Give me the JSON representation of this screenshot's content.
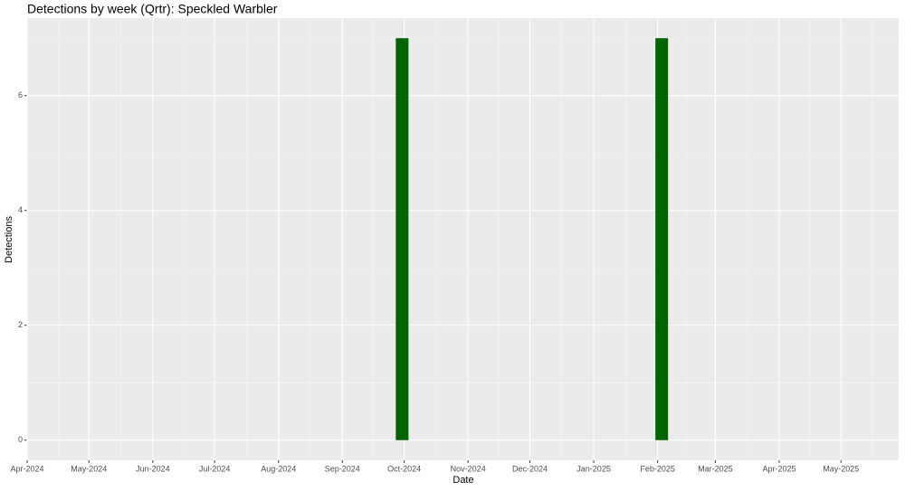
{
  "chart_data": {
    "type": "bar",
    "title": "Detections by week (Qrtr): Speckled Warbler",
    "x_label": "Date",
    "y_label": "Detections",
    "x": [
      182,
      308
    ],
    "values": [
      7,
      7
    ],
    "color": "#006400",
    "xlim": [
      0,
      423
    ],
    "ylim": [
      -0.35,
      7.35
    ],
    "xticks": [
      {
        "value": 0,
        "label": "Apr-2024"
      },
      {
        "value": 30,
        "label": "May-2024"
      },
      {
        "value": 61,
        "label": "Jun-2024"
      },
      {
        "value": 91,
        "label": "Jul-2024"
      },
      {
        "value": 122,
        "label": "Aug-2024"
      },
      {
        "value": 153,
        "label": "Sep-2024"
      },
      {
        "value": 183,
        "label": "Oct-2024"
      },
      {
        "value": 214,
        "label": "Nov-2024"
      },
      {
        "value": 244,
        "label": "Dec-2024"
      },
      {
        "value": 275,
        "label": "Jan-2025"
      },
      {
        "value": 306,
        "label": "Feb-2025"
      },
      {
        "value": 334,
        "label": "Mar-2025"
      },
      {
        "value": 365,
        "label": "Apr-2025"
      },
      {
        "value": 395,
        "label": "May-2025"
      }
    ],
    "yticks": [
      0,
      2,
      4,
      6
    ],
    "grid": true
  }
}
